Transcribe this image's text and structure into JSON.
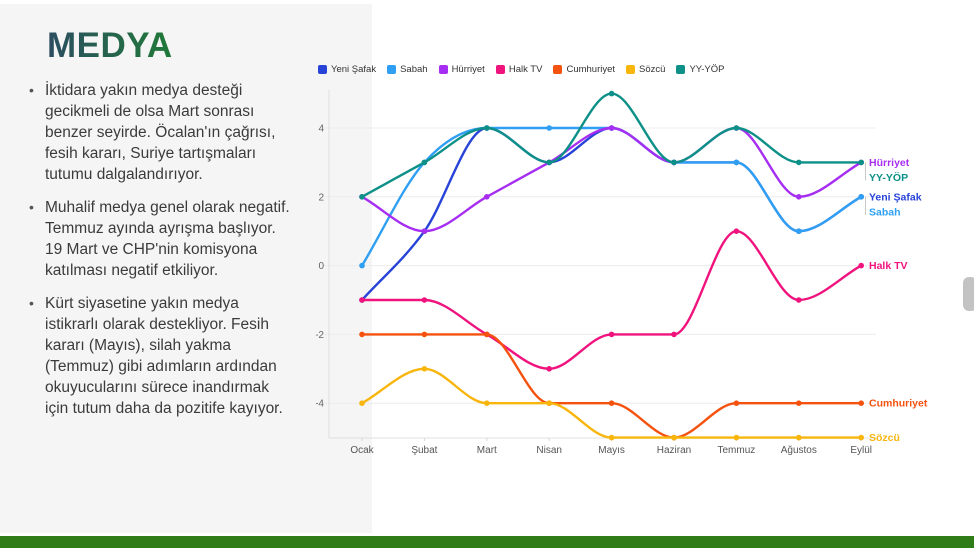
{
  "slide": {
    "title": "MEDYA",
    "title_gradient": [
      "#2c4d61",
      "#207a38"
    ],
    "panel_color": "#f6f5f6",
    "accent_bar_color": "#2f7c19",
    "bullets": [
      "İktidara yakın medya desteği gecikmeli de olsa Mart sonrası benzer seyirde. Öcalan'ın çağrısı, fesih kararı, Suriye tartışmaları tutumu dalgalandırıyor.",
      "Muhalif medya genel olarak negatif. Temmuz ayında ayrışma başlıyor. 19 Mart ve CHP'nin komisyona katılması negatif etkiliyor.",
      "Kürt siyasetine yakın medya istikrarlı olarak destekliyor. Fesih kararı (Mayıs), silah yakma (Temmuz) gibi adımların ardından okuyucularını sürece inandırmak için tutum daha da pozitife kayıyor."
    ]
  },
  "chart_data": {
    "type": "line",
    "line_style": "smooth-monotone",
    "legend_position": "top",
    "grid": "horizontal",
    "end_labels": true,
    "categories": [
      "Ocak",
      "Şubat",
      "Mart",
      "Nisan",
      "Mayıs",
      "Haziran",
      "Temmuz",
      "Ağustos",
      "Eylül"
    ],
    "y_ticks": [
      4,
      2,
      0,
      -2,
      -4
    ],
    "ylim": [
      -5,
      5
    ],
    "axis_color": "#e0e0e0",
    "grid_color": "#ececec",
    "tick_label_color": "#666666",
    "series": [
      {
        "name": "Yeni Şafak",
        "color": "#2743d8",
        "values": [
          -1,
          1,
          4,
          3,
          4,
          3,
          3,
          1,
          2
        ]
      },
      {
        "name": "Sabah",
        "color": "#2e9ff2",
        "values": [
          0,
          3,
          4,
          4,
          4,
          3,
          3,
          1,
          2
        ]
      },
      {
        "name": "Hürriyet",
        "color": "#a62df2",
        "values": [
          2,
          1,
          2,
          3,
          4,
          3,
          4,
          2,
          3
        ]
      },
      {
        "name": "Halk TV",
        "color": "#f0137e",
        "values": [
          -1,
          -1,
          -2,
          -3,
          -2,
          -2,
          1,
          -1,
          0
        ]
      },
      {
        "name": "Cumhuriyet",
        "color": "#f4520e",
        "values": [
          -2,
          -2,
          -2,
          -4,
          -4,
          -5,
          -4,
          -4,
          -4
        ]
      },
      {
        "name": "Sözcü",
        "color": "#f8b60d",
        "values": [
          -4,
          -3,
          -4,
          -4,
          -5,
          -5,
          -5,
          -5,
          -5
        ]
      },
      {
        "name": "YY-YÖP",
        "color": "#0c9087",
        "values": [
          2,
          3,
          4,
          3,
          5,
          3,
          4,
          3,
          3
        ]
      }
    ]
  }
}
